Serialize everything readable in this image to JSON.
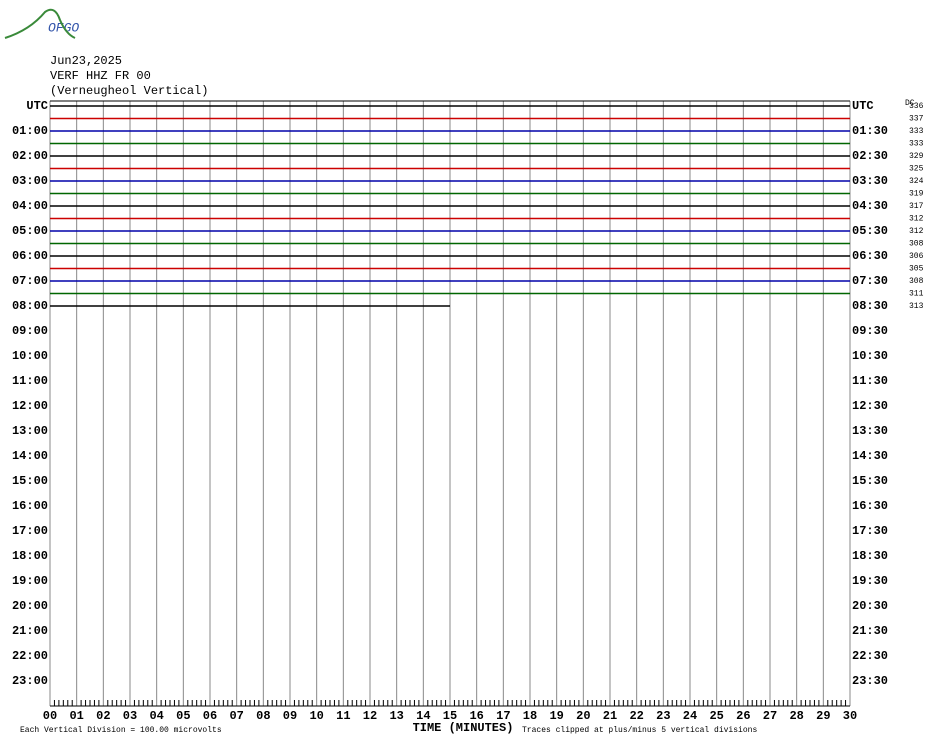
{
  "logo": "OFGO",
  "header": {
    "date": "Jun23,2025",
    "station": "VERF HHZ FR 00",
    "description": "(Verneugheol Vertical)"
  },
  "dc_title": "DC",
  "left_labels": [
    "UTC",
    "01:00",
    "02:00",
    "03:00",
    "04:00",
    "05:00",
    "06:00",
    "07:00",
    "08:00",
    "09:00",
    "10:00",
    "11:00",
    "12:00",
    "13:00",
    "14:00",
    "15:00",
    "16:00",
    "17:00",
    "18:00",
    "19:00",
    "20:00",
    "21:00",
    "22:00",
    "23:00"
  ],
  "right_labels": [
    "UTC",
    "01:30",
    "02:30",
    "03:30",
    "04:30",
    "05:30",
    "06:30",
    "07:30",
    "08:30",
    "09:30",
    "10:30",
    "11:30",
    "12:30",
    "13:30",
    "14:30",
    "15:30",
    "16:30",
    "17:30",
    "18:30",
    "19:30",
    "20:30",
    "21:30",
    "22:30",
    "23:30"
  ],
  "x_labels": [
    "00",
    "01",
    "02",
    "03",
    "04",
    "05",
    "06",
    "07",
    "08",
    "09",
    "10",
    "11",
    "12",
    "13",
    "14",
    "15",
    "16",
    "17",
    "18",
    "19",
    "20",
    "21",
    "22",
    "23",
    "24",
    "25",
    "26",
    "27",
    "28",
    "29",
    "30"
  ],
  "trace_colors": [
    "#000000",
    "#cc0000",
    "#0000aa",
    "#006600"
  ],
  "dc_values": [
    336,
    337,
    333,
    333,
    329,
    325,
    324,
    319,
    317,
    312,
    312,
    308,
    306,
    305,
    308,
    311,
    313
  ],
  "last_trace_end_minute": 15,
  "footer": {
    "scale": "Each Vertical Division =  100.00 microvolts",
    "x_title": "TIME (MINUTES)",
    "clip": "Traces clipped at plus/minus 5 vertical divisions"
  }
}
